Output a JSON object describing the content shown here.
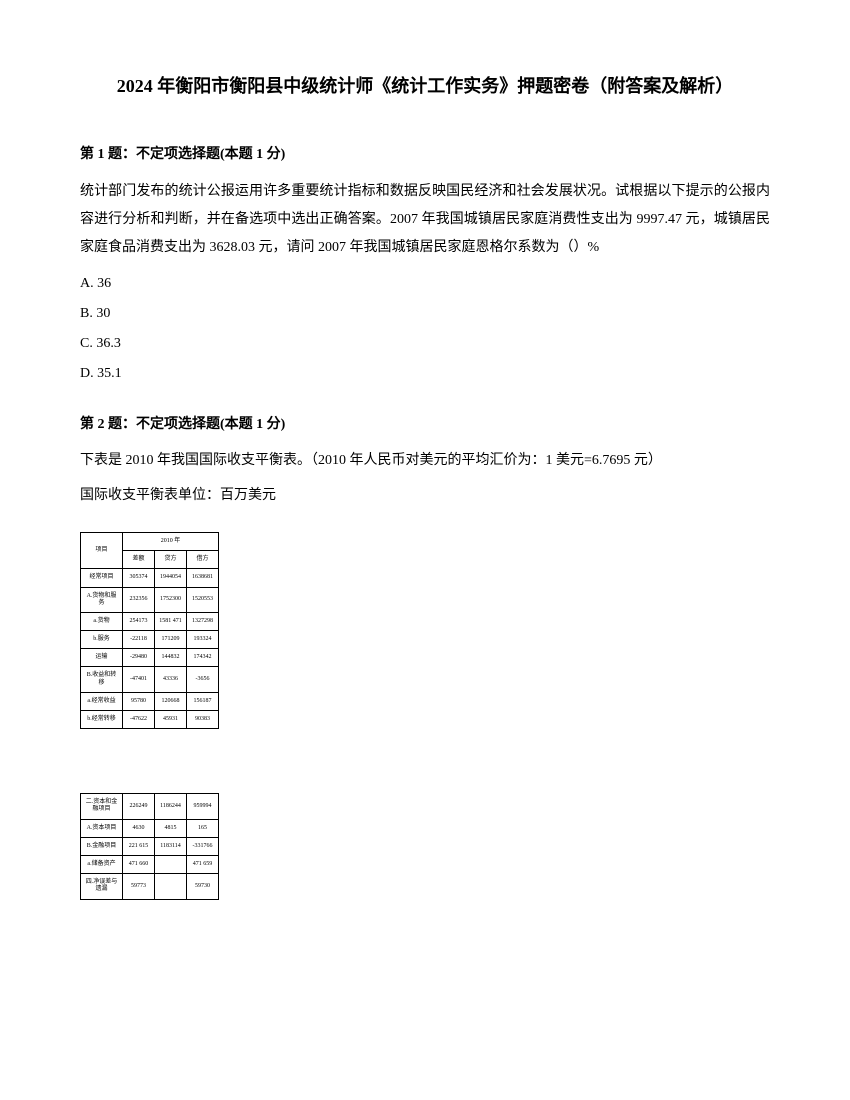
{
  "title": "2024 年衡阳市衡阳县中级统计师《统计工作实务》押题密卷（附答案及解析）",
  "q1": {
    "header": "第 1 题：不定项选择题(本题 1 分)",
    "body": "统计部门发布的统计公报运用许多重要统计指标和数据反映国民经济和社会发展状况。试根据以下提示的公报内容进行分析和判断，并在备选项中选出正确答案。2007 年我国城镇居民家庭消费性支出为 9997.47 元，城镇居民家庭食品消费支出为 3628.03 元，请问 2007 年我国城镇居民家庭恩格尔系数为（）%",
    "opts": {
      "a": "A. 36",
      "b": "B. 30",
      "c": "C. 36.3",
      "d": "D. 35.1"
    }
  },
  "q2": {
    "header": "第 2 题：不定项选择题(本题 1 分)",
    "body1": "下表是 2010 年我国国际收支平衡表。（2010 年人民币对美元的平均汇价为：1 美元=6.7695 元）",
    "body2": "国际收支平衡表单位：百万美元"
  },
  "table1": {
    "year": "2010 年",
    "h1": "项目",
    "h2": "差额",
    "h3": "贷方",
    "h4": "借方",
    "rows": [
      {
        "label": "经常项目",
        "v1": "305374",
        "v2": "1944054",
        "v3": "1638681"
      },
      {
        "label": "A.货物和服务",
        "v1": "232356",
        "v2": "1752300",
        "v3": "1520553"
      },
      {
        "label": "a.货物",
        "v1": "254173",
        "v2": "1581 471",
        "v3": "1327298"
      },
      {
        "label": "b.服务",
        "v1": "-22118",
        "v2": "171209",
        "v3": "193324"
      },
      {
        "label": "运输",
        "v1": "-29480",
        "v2": "144832",
        "v3": "174342"
      },
      {
        "label": "B.收益和转移",
        "v1": "-47401",
        "v2": "43336",
        "v3": "-3656"
      },
      {
        "label": "a.经常收益",
        "v1": "95780",
        "v2": "120668",
        "v3": "156187"
      },
      {
        "label": "b.经常转移",
        "v1": "-47622",
        "v2": "45931",
        "v3": "90383"
      }
    ]
  },
  "table2": {
    "rows": [
      {
        "label": "二.资本和金融项目",
        "v1": "226249",
        "v2": "1186244",
        "v3": "959994"
      },
      {
        "label": "A.资本项目",
        "v1": "4630",
        "v2": "4815",
        "v3": "165"
      },
      {
        "label": "B.金融项目",
        "v1": "221 615",
        "v2": "1183114",
        "v3": "-331766"
      },
      {
        "label": "a.储备资产",
        "v1": "471 660",
        "v2": "",
        "v3": "471 659"
      },
      {
        "label": "四.净误差与遗漏",
        "v1": "59773",
        "v2": "",
        "v3": "59730"
      }
    ]
  }
}
